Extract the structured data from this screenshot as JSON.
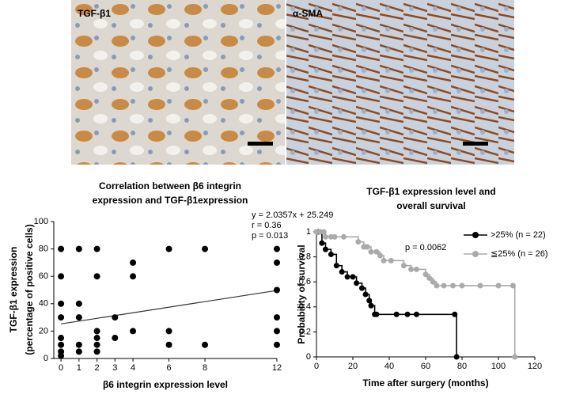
{
  "images": [
    {
      "label": "TGF-β1"
    },
    {
      "label": "α-SMA"
    }
  ],
  "chart_data": [
    {
      "type": "scatter",
      "title": [
        "Correlation between β6 integrin",
        "expression and TGF-β1expression"
      ],
      "x_label": "β6 integrin expression level",
      "y_label": [
        "TGF-β1 expression",
        "(percentage of positive cells)"
      ],
      "annotations": [
        "y = 2.0357x + 25.249",
        "r = 0.36",
        "p = 0.013"
      ],
      "fit": {
        "slope": 2.0357,
        "intercept": 25.249
      },
      "color": "#000000",
      "x": [
        0,
        0,
        0,
        0,
        0,
        0,
        0,
        0,
        1,
        1,
        1,
        1,
        1,
        2,
        2,
        2,
        2,
        2,
        2,
        3,
        3,
        4,
        4,
        4,
        6,
        6,
        6,
        8,
        8,
        12,
        12,
        12,
        12,
        12,
        12
      ],
      "values": [
        80,
        60,
        40,
        30,
        15,
        10,
        5,
        2,
        80,
        40,
        30,
        10,
        5,
        80,
        60,
        20,
        15,
        10,
        5,
        30,
        15,
        70,
        60,
        20,
        80,
        20,
        10,
        80,
        10,
        80,
        70,
        50,
        30,
        20,
        10
      ],
      "xlim": [
        -0.4,
        12
      ],
      "xticks": [
        0,
        1,
        2,
        3,
        4,
        6,
        8,
        12
      ],
      "ylim": [
        0,
        100
      ],
      "yticks": [
        0,
        20,
        40,
        60,
        80,
        100
      ]
    },
    {
      "type": "line",
      "step": true,
      "title": [
        "TGF-β1 expression level and",
        "overall survival"
      ],
      "x_label": "Time after surgery (months)",
      "y_label": "Probability of survival",
      "annotations": [
        "p = 0.0062"
      ],
      "series": [
        {
          "name": ">25% (n = 22)",
          "color": "#000000",
          "x": [
            1,
            3,
            5,
            8,
            11,
            14,
            17,
            20,
            22,
            25,
            27,
            29,
            30,
            32,
            33,
            44,
            50,
            55,
            76,
            77
          ],
          "values": [
            1,
            0.91,
            0.86,
            0.82,
            0.73,
            0.68,
            0.64,
            0.64,
            0.59,
            0.55,
            0.5,
            0.45,
            0.41,
            0.34,
            0.34,
            0.34,
            0.34,
            0.34,
            0.34,
            0
          ]
        },
        {
          "name": "≦25% (n = 26)",
          "color": "#aaaaaa",
          "x": [
            0,
            2,
            4,
            5,
            8,
            10,
            15,
            23,
            26,
            27,
            28,
            30,
            33,
            35,
            37,
            41,
            48,
            52,
            55,
            60,
            62,
            64,
            66,
            70,
            75,
            80,
            90,
            100,
            108,
            109
          ],
          "values": [
            1,
            1,
            1,
            0.96,
            0.96,
            0.96,
            0.96,
            0.92,
            0.88,
            0.88,
            0.88,
            0.84,
            0.84,
            0.81,
            0.77,
            0.77,
            0.73,
            0.7,
            0.7,
            0.66,
            0.63,
            0.6,
            0.57,
            0.57,
            0.57,
            0.57,
            0.57,
            0.57,
            0.57,
            0
          ]
        }
      ],
      "xlim": [
        0,
        120
      ],
      "xticks": [
        0,
        20,
        40,
        60,
        80,
        100,
        120
      ],
      "ylim": [
        0,
        1
      ],
      "yticks": [
        0,
        0.2,
        0.4,
        0.6,
        0.8,
        1
      ]
    }
  ]
}
